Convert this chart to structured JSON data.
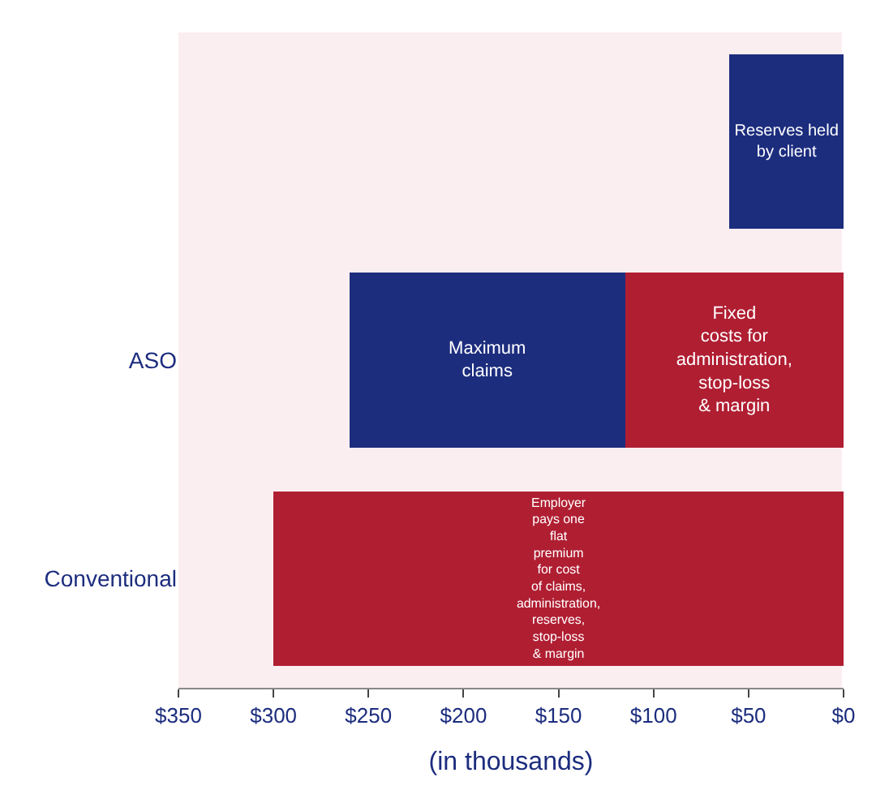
{
  "chart_data": {
    "type": "bar",
    "orientation": "horizontal",
    "stacked": true,
    "categories": [
      null,
      "ASO",
      "Conventional"
    ],
    "series": [
      {
        "color": "#b01e32",
        "values": [
          null,
          115,
          300
        ],
        "value_labels": [
          null,
          "Fixed\ncosts for\nadministration,\nstop-loss\n& margin",
          "Employer\npays one\nflat\npremium\nfor cost\nof claims,\nadministration,\nreserves,\nstop-loss\n& margin"
        ]
      },
      {
        "color": "#1c2d7e",
        "values": [
          60,
          145,
          null
        ],
        "value_labels": [
          "Reserves held\nby client",
          "Maximum\nclaims",
          null
        ]
      }
    ],
    "xlabel": "(in thousands)",
    "xlim": [
      350,
      0
    ],
    "xticks": [
      {
        "value": 0,
        "label": "$0"
      },
      {
        "value": 50,
        "label": "$50"
      },
      {
        "value": 100,
        "label": "$100"
      },
      {
        "value": 150,
        "label": "$150"
      },
      {
        "value": 200,
        "label": "$200"
      },
      {
        "value": 250,
        "label": "$250"
      },
      {
        "value": 300,
        "label": "$300"
      },
      {
        "value": 350,
        "label": "$350"
      }
    ],
    "grid": false
  }
}
